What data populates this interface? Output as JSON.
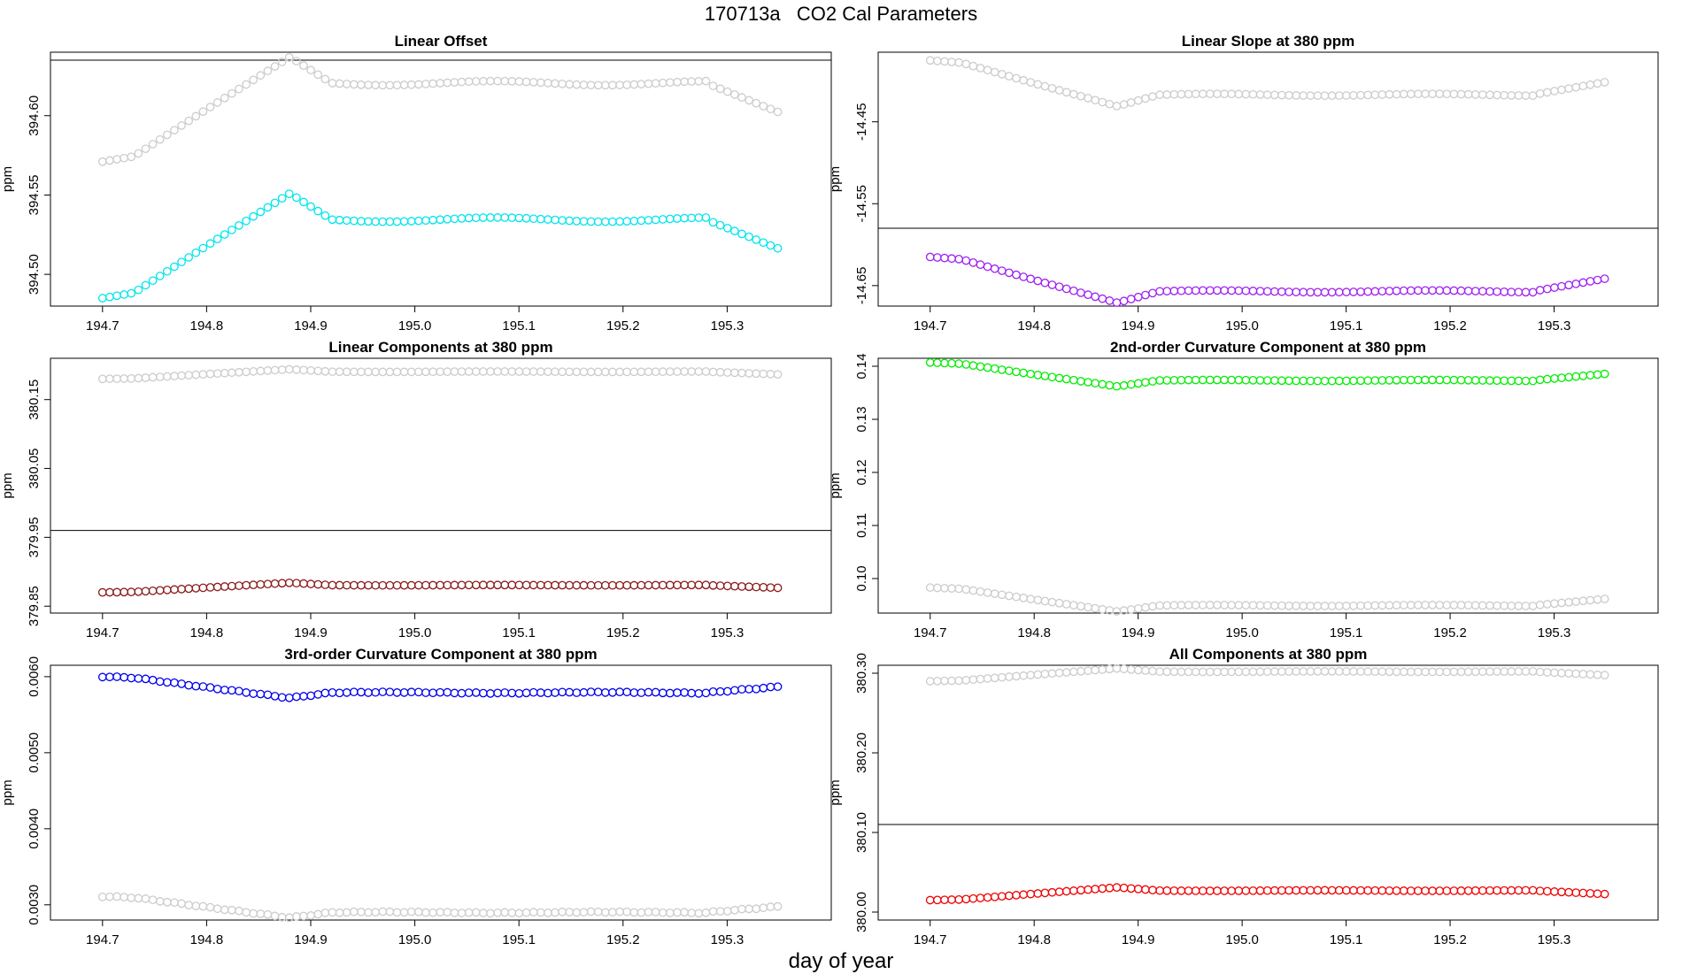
{
  "title": "170713a   CO2 Cal Parameters",
  "xlabel": "day of year",
  "chart_data": [
    {
      "type": "scatter",
      "title": "Linear Offset",
      "ylabel": "ppm",
      "xlim": [
        194.65,
        195.4
      ],
      "ylim": [
        394.48,
        394.64
      ],
      "xticks": [
        "194.7",
        "194.8",
        "194.9",
        "195.0",
        "195.1",
        "195.2",
        "195.3"
      ],
      "yticks": [
        "394.50",
        "394.55",
        "394.60"
      ],
      "hline": 394.635,
      "series": [
        {
          "color": "#cccccc",
          "base": 394.571,
          "amp": 0.066
        },
        {
          "color": "#00e5ee",
          "base": 394.485,
          "amp": 0.066
        }
      ]
    },
    {
      "type": "scatter",
      "title": "Linear Slope at 380 ppm",
      "ylabel": "ppm",
      "xlim": [
        194.65,
        195.4
      ],
      "ylim": [
        -14.675,
        -14.365
      ],
      "xticks": [
        "194.7",
        "194.8",
        "194.9",
        "195.0",
        "195.1",
        "195.2",
        "195.3"
      ],
      "yticks": [
        "-14.65",
        "-14.55",
        "-14.45"
      ],
      "hline": -14.58,
      "series": [
        {
          "color": "#cccccc",
          "base": -14.375,
          "amp": -0.056
        },
        {
          "color": "#a020f0",
          "base": -14.615,
          "amp": -0.056
        }
      ]
    },
    {
      "type": "scatter",
      "title": "Linear Components at 380 ppm",
      "ylabel": "ppm",
      "xlim": [
        194.65,
        195.4
      ],
      "ylim": [
        379.84,
        380.21
      ],
      "xticks": [
        "194.7",
        "194.8",
        "194.9",
        "195.0",
        "195.1",
        "195.2",
        "195.3"
      ],
      "yticks": [
        "379.85",
        "379.95",
        "380.05",
        "380.15"
      ],
      "hline": 379.96,
      "series": [
        {
          "color": "#cccccc",
          "base": 380.18,
          "amp": 0.014
        },
        {
          "color": "#8b1a1a",
          "base": 379.87,
          "amp": 0.014
        }
      ]
    },
    {
      "type": "scatter",
      "title": "2nd-order Curvature Component at 380 ppm",
      "ylabel": "ppm",
      "xlim": [
        194.65,
        195.4
      ],
      "ylim": [
        0.0935,
        0.1415
      ],
      "xticks": [
        "194.7",
        "194.8",
        "194.9",
        "195.0",
        "195.1",
        "195.2",
        "195.3"
      ],
      "yticks": [
        "0.10",
        "0.11",
        "0.12",
        "0.13",
        "0.14"
      ],
      "series": [
        {
          "color": "#00ee00",
          "base": 0.1407,
          "amp": -0.0045
        },
        {
          "color": "#cccccc",
          "base": 0.0983,
          "amp": -0.0045
        }
      ]
    },
    {
      "type": "scatter",
      "title": "3rd-order Curvature Component at 380 ppm",
      "ylabel": "ppm",
      "xlim": [
        194.65,
        195.4
      ],
      "ylim": [
        0.0028,
        0.00615
      ],
      "xticks": [
        "194.7",
        "194.8",
        "194.9",
        "195.0",
        "195.1",
        "195.2",
        "195.3"
      ],
      "yticks": [
        "0.0030",
        "0.0040",
        "0.0050",
        "0.0060"
      ],
      "series": [
        {
          "color": "#0000ee",
          "base": 0.006,
          "amp": -0.00028
        },
        {
          "color": "#cccccc",
          "base": 0.00311,
          "amp": -0.00028
        }
      ]
    },
    {
      "type": "scatter",
      "title": "All Components at 380 ppm",
      "ylabel": "ppm",
      "xlim": [
        194.65,
        195.4
      ],
      "ylim": [
        379.99,
        380.31
      ],
      "xticks": [
        "194.7",
        "194.8",
        "194.9",
        "195.0",
        "195.1",
        "195.2",
        "195.3"
      ],
      "yticks": [
        "380.00",
        "380.10",
        "380.20",
        "380.30"
      ],
      "hline": 380.11,
      "series": [
        {
          "color": "#cccccc",
          "base": 380.29,
          "amp": 0.016
        },
        {
          "color": "#ee0000",
          "base": 380.015,
          "amp": 0.016
        }
      ]
    }
  ]
}
